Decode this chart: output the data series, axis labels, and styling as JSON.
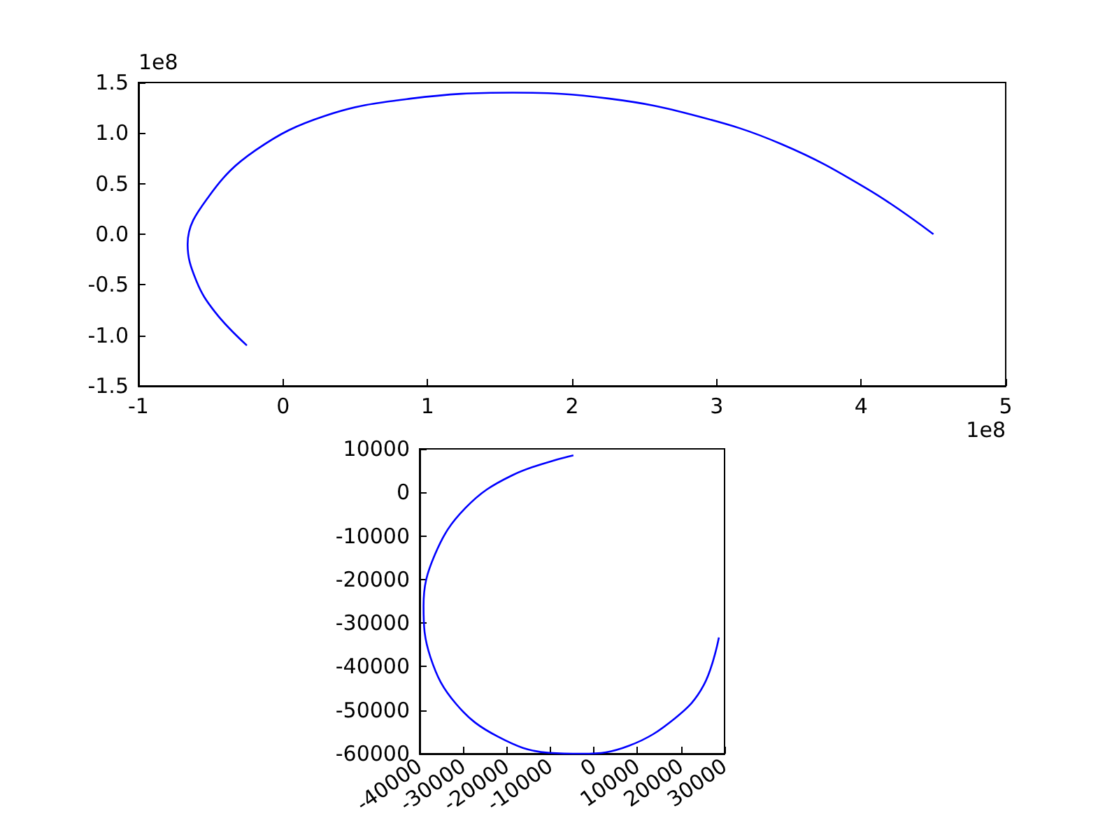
{
  "chart_data": [
    {
      "type": "line",
      "color": "#0000ff",
      "x": [
        4.5,
        4.04,
        3.45,
        2.86,
        2.26,
        1.59,
        0.88,
        0.29,
        -0.19,
        -0.51,
        -0.66,
        -0.6,
        -0.47,
        -0.25
      ],
      "values": [
        0,
        0.45,
        0.89,
        1.17,
        1.34,
        1.4,
        1.34,
        1.17,
        0.83,
        0.38,
        -0.1,
        -0.46,
        -0.77,
        -1.1
      ],
      "xlim": [
        -1,
        5
      ],
      "xticks": [
        -1,
        0,
        1,
        2,
        3,
        4,
        5
      ],
      "ylim": [
        -1.5,
        1.5
      ],
      "yticks": [
        -1.5,
        {
          "value": -1,
          "label": "-1.0"
        },
        -0.5,
        {
          "value": 0,
          "label": "0.0"
        },
        0.5,
        {
          "value": 1,
          "label": "1.0"
        },
        1.5
      ],
      "annotations": [
        "1e8",
        "1e8"
      ]
    },
    {
      "type": "line",
      "color": "#0000ff",
      "x": [
        -4700,
        -18800,
        -29500,
        -36500,
        -39100,
        -37500,
        -31600,
        -22000,
        -10200,
        -2700,
        8000,
        18700,
        25200,
        28700
      ],
      "values": [
        8500,
        3900,
        -3600,
        -14300,
        -26100,
        -37900,
        -48600,
        -56100,
        -59800,
        -60000,
        -58200,
        -51800,
        -44300,
        -33300
      ],
      "xlim": [
        -40000,
        30000
      ],
      "xticks": [
        -40000,
        -30000,
        -20000,
        -10000,
        0,
        10000,
        20000,
        30000
      ],
      "ylim": [
        -60000,
        10000
      ],
      "yticks": [
        -60000,
        -50000,
        -40000,
        -30000,
        -20000,
        -10000,
        0,
        10000
      ]
    }
  ]
}
